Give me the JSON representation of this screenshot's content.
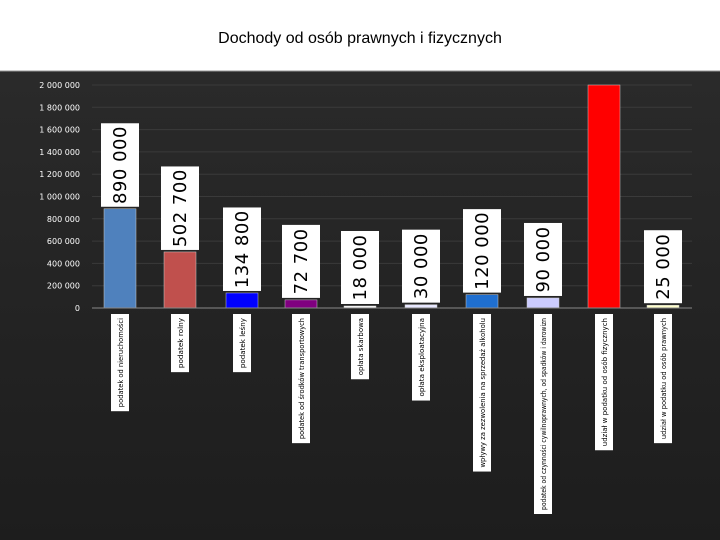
{
  "colors": {
    "background": "#1d1d1d",
    "label_box": "#ffffff",
    "gridline": "#3a3a3a"
  },
  "chart_data": {
    "type": "bar",
    "title": "Dochody od osób prawnych i fizycznych",
    "xlabel": "",
    "ylabel": "",
    "ylim": [
      0,
      2000000
    ],
    "yticks": [
      0,
      200000,
      400000,
      600000,
      800000,
      1000000,
      1200000,
      1400000,
      1600000,
      1800000,
      2000000
    ],
    "ytick_labels": [
      "0",
      "200 000",
      "400 000",
      "600 000",
      "800 000",
      "1 000 000",
      "1 200 000",
      "1 400 000",
      "1 600 000",
      "1 800 000",
      "2 000 000"
    ],
    "grid": true,
    "categories": [
      "podatek od nieruchomości",
      "podatek rolny",
      "podatek leśny",
      "podatek od środków transportowych",
      "opłata skarbowa",
      "opłata eksploatacyjna",
      "wpływy za zezwolenia na sprzedaż alkoholu",
      "podatek od czynności cywilnoprawnych, od spadków i darowizn",
      "udział w podatku od osób fizycznych",
      "udział w podatku od osób prawnych"
    ],
    "values": [
      890000,
      502700,
      134800,
      72700,
      18000,
      30000,
      120000,
      90000,
      2000000,
      25000
    ],
    "value_labels": [
      "890 000",
      "502 700",
      "134 800",
      "72 700",
      "18 000",
      "30 000",
      "120 000",
      "90 000",
      "",
      "25 000"
    ],
    "bar_colors": [
      "#4f81bd",
      "#c0504d",
      "#0000ff",
      "#800080",
      "#ffffff",
      "#e8e8ff",
      "#1f6fd0",
      "#ccccff",
      "#ff0000",
      "#ffffcc"
    ]
  }
}
